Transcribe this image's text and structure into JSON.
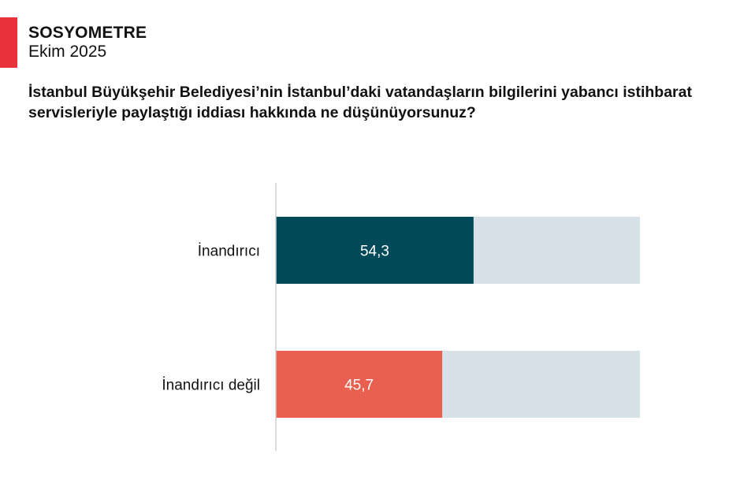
{
  "header": {
    "brand": "SOSYOMETRE",
    "date": "Ekim 2025",
    "question": "İstanbul Büyükşehir Belediyesi’nin İstanbul’daki vatandaşların bilgilerini yabancı istihbarat servisleriyle paylaştığı iddiası hakkında ne düşünüyorsunuz?"
  },
  "colors": {
    "accent": "#e8323c",
    "bar_1": "#024a5a",
    "bar_2": "#ea6050",
    "track": "#d6e2e8",
    "axis": "#d0d0d0"
  },
  "chart_data": {
    "type": "bar",
    "orientation": "horizontal",
    "stacked_track": true,
    "categories": [
      "İnandırıcı",
      "İnandırıcı değil"
    ],
    "values": [
      54.3,
      45.7
    ],
    "value_labels": [
      "54,3",
      "45,7"
    ],
    "xlim": [
      0,
      100
    ],
    "title": "",
    "xlabel": "",
    "ylabel": "",
    "grid": false,
    "legend": "none"
  }
}
